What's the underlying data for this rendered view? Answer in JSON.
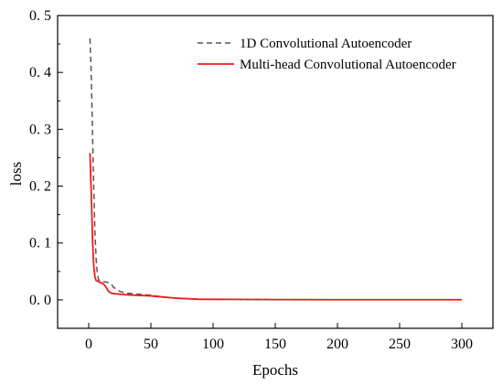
{
  "chart_data": {
    "type": "line",
    "xlabel": "Epochs",
    "ylabel": "loss",
    "xlim": [
      -25,
      325
    ],
    "ylim": [
      -0.05,
      0.5
    ],
    "xticks": [
      0,
      50,
      100,
      150,
      200,
      250,
      300
    ],
    "xtick_labels": [
      "0",
      "50",
      "100",
      "150",
      "200",
      "250",
      "300"
    ],
    "yticks": [
      0.0,
      0.1,
      0.2,
      0.3,
      0.4,
      0.5
    ],
    "ytick_labels": [
      "0. 0",
      "0. 1",
      "0. 2",
      "0. 3",
      "0. 4",
      "0. 5"
    ],
    "grid": false,
    "legend_position": "top-right",
    "series": [
      {
        "name": "1D Convolutional Autoencoder",
        "color": "#555555",
        "style": "dashed",
        "x": [
          1,
          2,
          3,
          4,
          5,
          6,
          7,
          8,
          10,
          12,
          15,
          18,
          20,
          25,
          30,
          40,
          50,
          60,
          70,
          80,
          90,
          100,
          150,
          200,
          250,
          300
        ],
        "y": [
          0.46,
          0.4,
          0.3,
          0.2,
          0.12,
          0.07,
          0.045,
          0.035,
          0.033,
          0.032,
          0.031,
          0.028,
          0.022,
          0.015,
          0.012,
          0.01,
          0.008,
          0.005,
          0.003,
          0.002,
          0.001,
          0.001,
          0.0005,
          0.0003,
          0.0002,
          0.0002
        ]
      },
      {
        "name": "Multi-head Convolutional Autoencoder",
        "color": "#ee1c1c",
        "style": "solid",
        "x": [
          1,
          2,
          3,
          4,
          5,
          6,
          8,
          10,
          12,
          14,
          16,
          18,
          20,
          25,
          30,
          40,
          50,
          60,
          70,
          80,
          90,
          100,
          150,
          200,
          250,
          300
        ],
        "y": [
          0.258,
          0.19,
          0.11,
          0.06,
          0.04,
          0.034,
          0.032,
          0.03,
          0.028,
          0.022,
          0.015,
          0.012,
          0.011,
          0.01,
          0.009,
          0.008,
          0.007,
          0.005,
          0.003,
          0.002,
          0.001,
          0.001,
          0.0005,
          0.0003,
          0.0002,
          0.0002
        ]
      }
    ]
  }
}
